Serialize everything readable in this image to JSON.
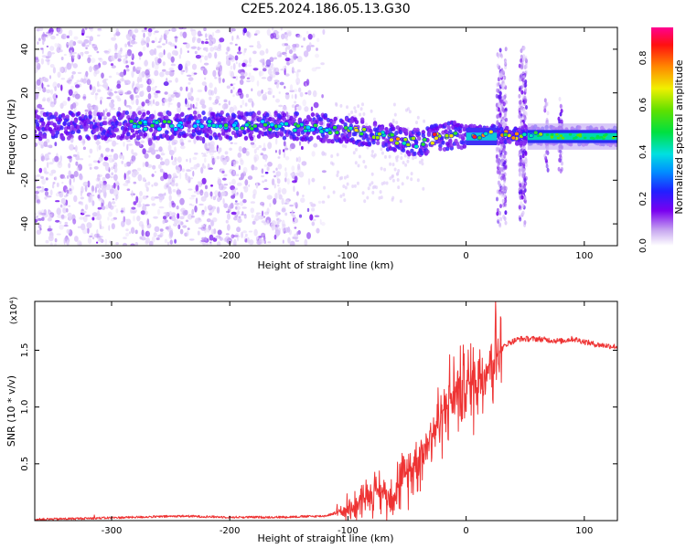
{
  "title": "C2E5.2024.186.05.13.G30",
  "chart_data": [
    {
      "type": "heatmap",
      "xlabel": "Height of straight line (km)",
      "ylabel": "Frequency (Hz)",
      "xlim": [
        -365,
        128
      ],
      "ylim": [
        -50,
        50
      ],
      "xticks": [
        -300,
        -200,
        -100,
        0,
        100
      ],
      "yticks": [
        -40,
        -20,
        0,
        20,
        40
      ],
      "colorbar": {
        "label": "Normalized spectral amplitude",
        "range": [
          0,
          0.93
        ],
        "ticks": [
          "0.0",
          "0.2",
          "0.4",
          "0.6",
          "0.8"
        ]
      },
      "ridge": [
        {
          "x": -365,
          "y": 5
        },
        {
          "x": -150,
          "y": 5
        },
        {
          "x": -100,
          "y": 3
        },
        {
          "x": -70,
          "y": 0
        },
        {
          "x": -40,
          "y": -3
        },
        {
          "x": -20,
          "y": 0
        },
        {
          "x": 0,
          "y": 1
        },
        {
          "x": 128,
          "y": 0
        }
      ],
      "bursts": [
        {
          "x": 30,
          "width": 8
        },
        {
          "x": 48,
          "width": 6
        },
        {
          "x": 68,
          "width": 3
        },
        {
          "x": 80,
          "width": 3
        }
      ]
    },
    {
      "type": "line",
      "xlabel": "Height of straight line (km)",
      "ylabel": "SNR (10 * v/v)",
      "y_multiplier": "(x10⁴)",
      "xlim": [
        -365,
        128
      ],
      "ylim": [
        0,
        1.93
      ],
      "xticks": [
        -300,
        -200,
        -100,
        0,
        100
      ],
      "yticks": [
        "0.5",
        "1.0",
        "1.5"
      ],
      "series": [
        {
          "name": "SNR",
          "color": "#ee3333",
          "points": [
            [
              -365,
              0.01
            ],
            [
              -320,
              0.02
            ],
            [
              -280,
              0.03
            ],
            [
              -240,
              0.04
            ],
            [
              -200,
              0.03
            ],
            [
              -160,
              0.03
            ],
            [
              -120,
              0.04
            ],
            [
              -105,
              0.08
            ],
            [
              -95,
              0.13
            ],
            [
              -85,
              0.22
            ],
            [
              -75,
              0.26
            ],
            [
              -65,
              0.22
            ],
            [
              -55,
              0.34
            ],
            [
              -45,
              0.48
            ],
            [
              -35,
              0.65
            ],
            [
              -25,
              0.85
            ],
            [
              -15,
              1.05
            ],
            [
              -5,
              1.15
            ],
            [
              5,
              1.22
            ],
            [
              15,
              1.32
            ],
            [
              25,
              1.46
            ],
            [
              35,
              1.56
            ],
            [
              45,
              1.6
            ],
            [
              60,
              1.6
            ],
            [
              80,
              1.58
            ],
            [
              90,
              1.6
            ],
            [
              110,
              1.55
            ],
            [
              128,
              1.53
            ]
          ]
        }
      ]
    }
  ]
}
